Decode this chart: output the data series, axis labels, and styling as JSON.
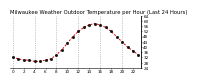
{
  "title": "Milwaukee Weather Outdoor Temperature per Hour (Last 24 Hours)",
  "hours": [
    0,
    1,
    2,
    3,
    4,
    5,
    6,
    7,
    8,
    9,
    10,
    11,
    12,
    13,
    14,
    15,
    16,
    17,
    18,
    19,
    20,
    21,
    22,
    23
  ],
  "temps": [
    32,
    31,
    30,
    30,
    29,
    29,
    30,
    31,
    34,
    38,
    43,
    48,
    52,
    55,
    57,
    58,
    57,
    55,
    52,
    48,
    44,
    40,
    37,
    34
  ],
  "line_color": "#dd0000",
  "marker_color": "#111111",
  "bg_color": "#ffffff",
  "grid_color": "#999999",
  "title_color": "#000000",
  "ylim": [
    24,
    64
  ],
  "yticks": [
    24,
    28,
    32,
    36,
    40,
    44,
    48,
    52,
    56,
    60,
    64
  ],
  "xtick_positions": [
    0,
    2,
    4,
    6,
    8,
    10,
    12,
    14,
    16,
    18,
    20,
    22
  ],
  "title_fontsize": 3.8,
  "tick_fontsize": 3.0
}
